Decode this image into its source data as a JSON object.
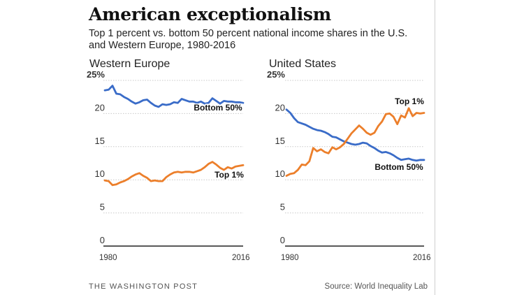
{
  "title": "American exceptionalism",
  "subtitle": "Top 1 percent vs. bottom 50 percent national income shares in the U.S. and Western Europe, 1980-2016",
  "footer": {
    "left": "THE WASHINGTON POST",
    "right": "Source: World Inequality Lab"
  },
  "colors": {
    "bottom50": "#3a6cc8",
    "top1": "#ec7f2b",
    "grid": "#c8c8c8",
    "axis": "#222222"
  },
  "chart_data": [
    {
      "type": "line",
      "title": "Western Europe",
      "x_ticks": [
        "1980",
        "2016"
      ],
      "y_ticks": [
        "0",
        "5",
        "10",
        "15",
        "20",
        "25%"
      ],
      "ylim": [
        0,
        25
      ],
      "xlim": [
        1980,
        2016
      ],
      "x": [
        1980,
        1981,
        1982,
        1983,
        1984,
        1985,
        1986,
        1987,
        1988,
        1989,
        1990,
        1991,
        1992,
        1993,
        1994,
        1995,
        1996,
        1997,
        1998,
        1999,
        2000,
        2001,
        2002,
        2003,
        2004,
        2005,
        2006,
        2007,
        2008,
        2009,
        2010,
        2011,
        2012,
        2013,
        2014,
        2015,
        2016
      ],
      "series": [
        {
          "name": "Bottom 50%",
          "color": "bottom50",
          "values": [
            23.5,
            23.6,
            24.2,
            23.0,
            22.9,
            22.5,
            22.2,
            21.8,
            21.5,
            21.7,
            22.0,
            22.1,
            21.6,
            21.2,
            21.0,
            21.4,
            21.3,
            21.4,
            21.7,
            21.6,
            22.2,
            22.0,
            21.8,
            21.8,
            21.6,
            21.8,
            21.5,
            21.6,
            22.3,
            21.9,
            21.5,
            21.9,
            21.8,
            21.8,
            21.7,
            21.7,
            21.6
          ]
        },
        {
          "name": "Top 1%",
          "color": "top1",
          "values": [
            9.9,
            9.8,
            9.2,
            9.3,
            9.6,
            9.8,
            10.1,
            10.5,
            10.8,
            11.0,
            10.6,
            10.3,
            9.8,
            9.9,
            9.8,
            9.8,
            10.4,
            10.8,
            11.1,
            11.2,
            11.1,
            11.2,
            11.2,
            11.1,
            11.3,
            11.5,
            11.9,
            12.4,
            12.7,
            12.3,
            11.8,
            11.5,
            11.9,
            11.7,
            12.0,
            12.1,
            12.2
          ]
        }
      ]
    },
    {
      "type": "line",
      "title": "United States",
      "x_ticks": [
        "1980",
        "2016"
      ],
      "y_ticks": [
        "0",
        "5",
        "10",
        "15",
        "20",
        "25%"
      ],
      "ylim": [
        0,
        25
      ],
      "xlim": [
        1980,
        2016
      ],
      "x": [
        1980,
        1981,
        1982,
        1983,
        1984,
        1985,
        1986,
        1987,
        1988,
        1989,
        1990,
        1991,
        1992,
        1993,
        1994,
        1995,
        1996,
        1997,
        1998,
        1999,
        2000,
        2001,
        2002,
        2003,
        2004,
        2005,
        2006,
        2007,
        2008,
        2009,
        2010,
        2011,
        2012,
        2013,
        2014,
        2015,
        2016
      ],
      "series": [
        {
          "name": "Bottom 50%",
          "color": "bottom50",
          "values": [
            20.6,
            20.1,
            19.3,
            18.7,
            18.5,
            18.3,
            18.0,
            17.7,
            17.5,
            17.4,
            17.2,
            16.9,
            16.5,
            16.4,
            16.1,
            15.8,
            15.6,
            15.4,
            15.3,
            15.4,
            15.6,
            15.5,
            15.1,
            14.8,
            14.4,
            14.1,
            14.2,
            14.0,
            13.7,
            13.3,
            13.0,
            13.1,
            13.2,
            13.0,
            12.9,
            13.0,
            13.0
          ]
        },
        {
          "name": "Top 1%",
          "color": "top1",
          "values": [
            10.6,
            10.9,
            11.0,
            11.5,
            12.3,
            12.2,
            12.8,
            14.8,
            14.3,
            14.6,
            14.2,
            14.0,
            14.9,
            14.6,
            14.9,
            15.4,
            16.2,
            17.0,
            17.6,
            18.2,
            17.7,
            17.1,
            16.8,
            17.1,
            18.1,
            18.8,
            19.9,
            20.0,
            19.5,
            18.4,
            19.7,
            19.4,
            20.8,
            19.6,
            20.1,
            20.0,
            20.1
          ]
        }
      ]
    }
  ]
}
